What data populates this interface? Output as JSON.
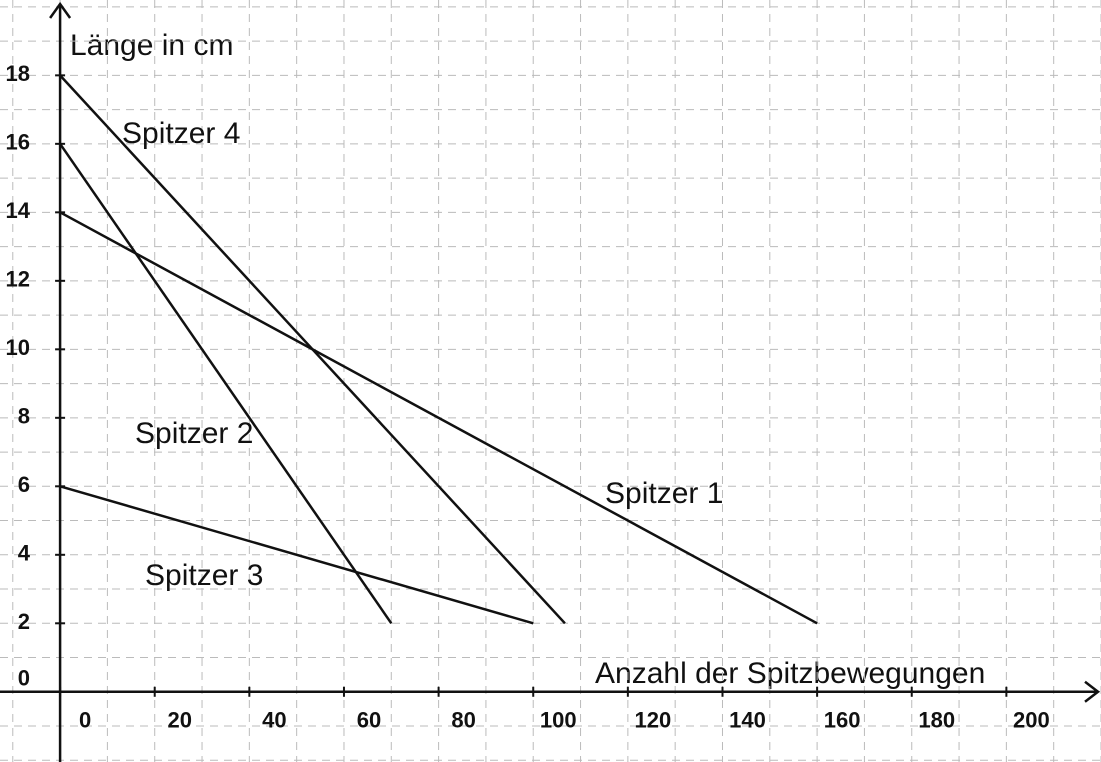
{
  "chart_data": {
    "type": "line",
    "x_label": "Anzahl der Spitzbewegungen",
    "y_label": "Länge in cm",
    "xlim": [
      -12.7,
      220
    ],
    "ylim": [
      -2.05,
      20.2
    ],
    "xticks": [
      0,
      20,
      40,
      60,
      80,
      100,
      120,
      140,
      160,
      180,
      200
    ],
    "yticks": [
      0,
      2,
      4,
      6,
      8,
      10,
      12,
      14,
      16,
      18
    ],
    "grid": true,
    "series": [
      {
        "name": "Spitzer 1",
        "color": "#111111",
        "x": [
          0,
          160
        ],
        "values": [
          14,
          2
        ]
      },
      {
        "name": "Spitzer 2",
        "color": "#111111",
        "x": [
          0,
          70
        ],
        "values": [
          16,
          2
        ]
      },
      {
        "name": "Spitzer 3",
        "color": "#111111",
        "x": [
          0,
          100
        ],
        "values": [
          6,
          2
        ]
      },
      {
        "name": "Spitzer 4",
        "color": "#111111",
        "x": [
          0,
          106.7
        ],
        "values": [
          18,
          2
        ]
      }
    ]
  }
}
